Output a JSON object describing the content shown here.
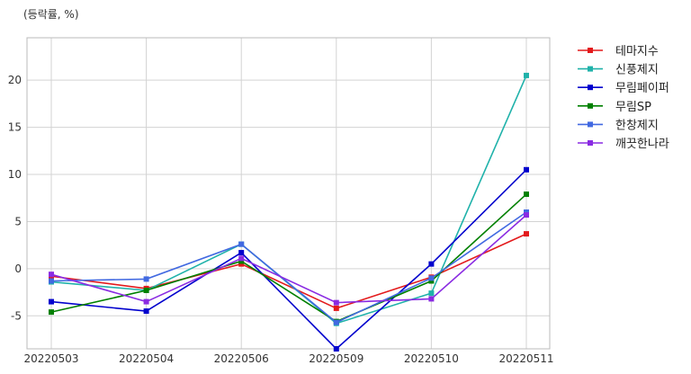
{
  "chart_data": {
    "type": "line",
    "ylabel": "(등락률, %)",
    "x": [
      "20220503",
      "20220504",
      "20220506",
      "20220509",
      "20220510",
      "20220511"
    ],
    "yticks": [
      -5,
      0,
      5,
      10,
      15,
      20
    ],
    "ylim": [
      -8.5,
      24.5
    ],
    "grid": true,
    "legend_position": "right",
    "series": [
      {
        "name": "테마지수",
        "color": "#e31a1c",
        "values": [
          -0.8,
          -2.1,
          0.5,
          -4.2,
          -0.9,
          3.7
        ]
      },
      {
        "name": "신풍제지",
        "color": "#20b2aa",
        "values": [
          -1.4,
          -2.3,
          2.6,
          -5.8,
          -2.6,
          20.5
        ]
      },
      {
        "name": "무림페이퍼",
        "color": "#0000cd",
        "values": [
          -3.5,
          -4.5,
          1.7,
          -8.5,
          0.5,
          10.5
        ]
      },
      {
        "name": "무림SP",
        "color": "#008000",
        "values": [
          -4.6,
          -2.3,
          0.8,
          -5.6,
          -1.3,
          7.9
        ]
      },
      {
        "name": "한창제지",
        "color": "#4169e1",
        "values": [
          -1.3,
          -1.1,
          2.6,
          -5.7,
          -1.0,
          6.0
        ]
      },
      {
        "name": "깨끗한나라",
        "color": "#8a2be2",
        "values": [
          -0.6,
          -3.5,
          1.1,
          -3.6,
          -3.2,
          5.7
        ]
      }
    ]
  }
}
